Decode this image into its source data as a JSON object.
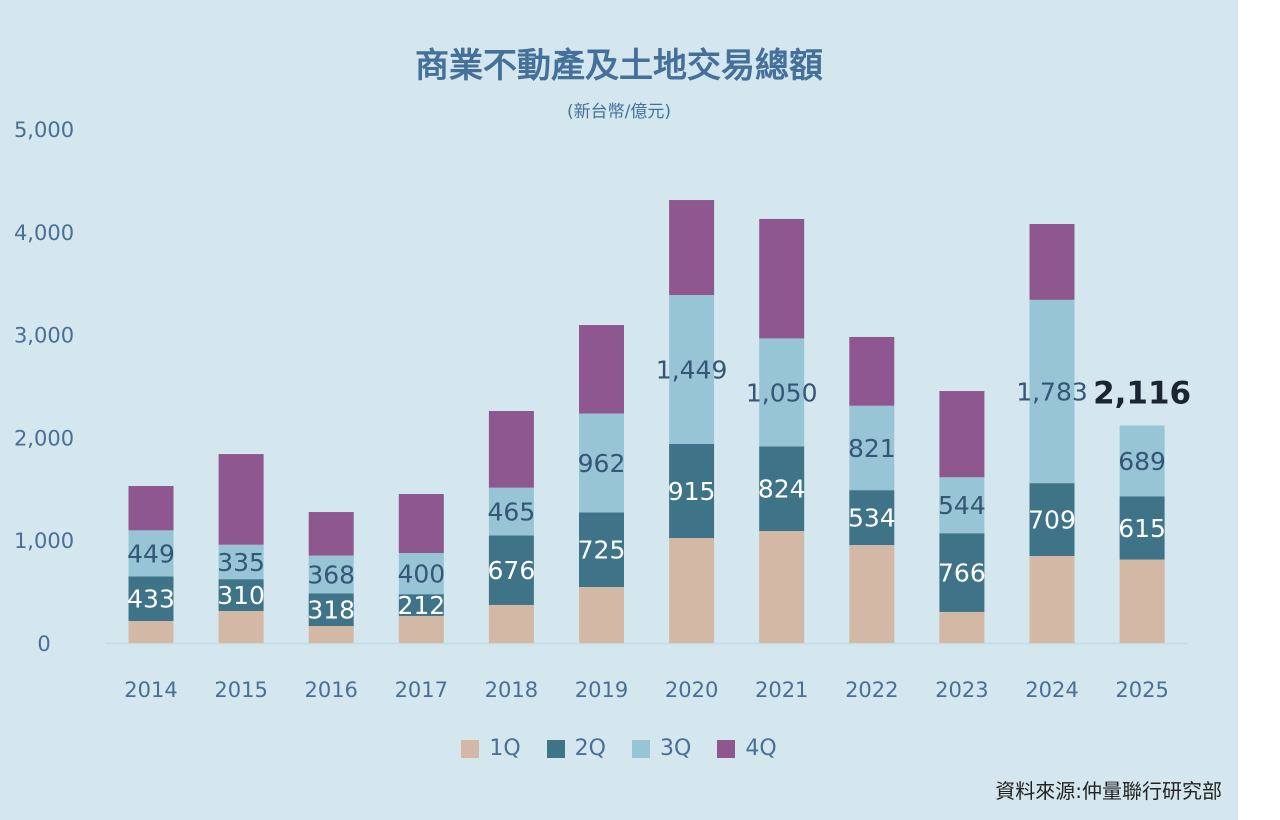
{
  "chart_data": {
    "type": "bar",
    "stacked": true,
    "title": "商業不動產及土地交易總額",
    "subtitle": "(新台幣/億元)",
    "categories": [
      "2014",
      "2015",
      "2016",
      "2017",
      "2018",
      "2019",
      "2020",
      "2021",
      "2022",
      "2023",
      "2024",
      "2025"
    ],
    "ylim": [
      0,
      5000
    ],
    "yticks": [
      "0",
      "1,000",
      "2,000",
      "3,000",
      "4,000",
      "5,000"
    ],
    "grid": false,
    "legend": "bottom",
    "series": [
      {
        "name": "1Q",
        "color": "#d2b8a5",
        "values": [
          214,
          311,
          165,
          263,
          370,
          545,
          1021,
          1089,
          953,
          302,
          846,
          812
        ],
        "labeled": false
      },
      {
        "name": "2Q",
        "color": "#3f7488",
        "values": [
          433,
          310,
          318,
          212,
          676,
          725,
          915,
          824,
          534,
          766,
          709,
          615
        ],
        "labeled": true,
        "label_color": "#ffffff"
      },
      {
        "name": "3Q",
        "color": "#97c5d6",
        "values": [
          449,
          335,
          368,
          400,
          465,
          962,
          1449,
          1050,
          821,
          544,
          1783,
          689
        ],
        "labeled": true,
        "label_color": "#345677"
      },
      {
        "name": "4Q",
        "color": "#8f578f",
        "values": [
          431,
          882,
          423,
          574,
          746,
          861,
          924,
          1162,
          669,
          839,
          738,
          null
        ],
        "labeled": false
      }
    ],
    "annotation": {
      "category": "2025",
      "text": "2,116"
    }
  },
  "source": "資料來源:仲量聯行研究部"
}
